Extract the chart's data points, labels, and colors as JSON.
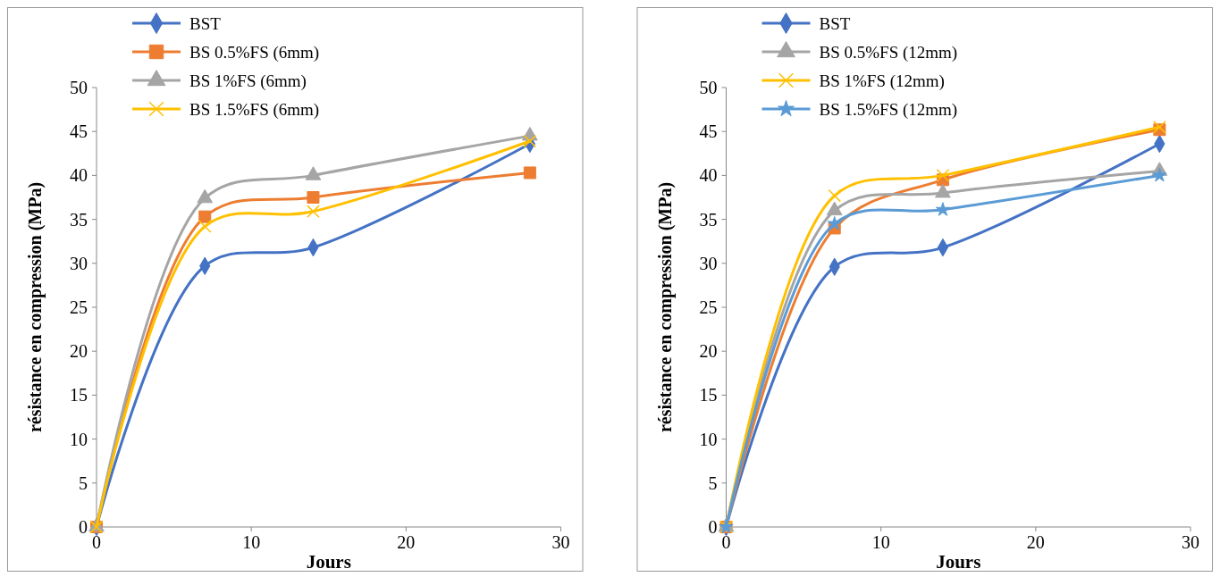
{
  "chart_data": [
    {
      "type": "line",
      "xlabel": "Jours",
      "ylabel": "résistance en compression (MPa)",
      "x": [
        0,
        7,
        14,
        28
      ],
      "xlim": [
        0,
        30
      ],
      "xticks": [
        0,
        10,
        20,
        30
      ],
      "ylim": [
        0,
        50
      ],
      "yticks": [
        0,
        5,
        10,
        15,
        20,
        25,
        30,
        35,
        40,
        45,
        50
      ],
      "grid": false,
      "legend": "top",
      "line_style": "solid",
      "series": [
        {
          "name": "BST",
          "color": "#4472c4",
          "marker": "diamond",
          "values": [
            0,
            29.7,
            31.8,
            43.6
          ]
        },
        {
          "name": "BS 0.5%FS (6mm)",
          "color": "#ed7d31",
          "marker": "square",
          "values": [
            0,
            35.3,
            37.5,
            40.3
          ]
        },
        {
          "name": "BS 1%FS (6mm)",
          "color": "#a5a5a5",
          "marker": "triangle",
          "values": [
            0,
            37.4,
            40,
            44.5
          ]
        },
        {
          "name": "BS 1.5%FS (6mm)",
          "color": "#ffc000",
          "marker": "cross",
          "values": [
            0,
            34.2,
            35.9,
            43.9
          ]
        }
      ]
    },
    {
      "type": "line",
      "xlabel": "Jours",
      "ylabel": "résistance en compression (MPa)",
      "x": [
        0,
        7,
        14,
        28
      ],
      "xlim": [
        0,
        30
      ],
      "xticks": [
        0,
        10,
        20,
        30
      ],
      "ylim": [
        0,
        50
      ],
      "yticks": [
        0,
        5,
        10,
        15,
        20,
        25,
        30,
        35,
        40,
        45,
        50
      ],
      "grid": false,
      "legend": "top",
      "line_style": "solid",
      "series": [
        {
          "name": "BST",
          "color": "#4472c4",
          "marker": "diamond",
          "values": [
            0,
            29.6,
            31.8,
            43.6
          ]
        },
        {
          "color": "#ed7d31",
          "marker": "square",
          "values": [
            0,
            34,
            39.5,
            45.2
          ]
        },
        {
          "name": "BS 0.5%FS (12mm)",
          "color": "#a5a5a5",
          "marker": "triangle",
          "values": [
            0,
            36,
            38,
            40.5
          ]
        },
        {
          "name": "BS 1%FS (12mm)",
          "color": "#ffc000",
          "marker": "cross",
          "values": [
            0,
            37.7,
            40,
            45.5
          ]
        },
        {
          "name": "BS 1.5%FS (12mm)",
          "color": "#5b9bd5",
          "marker": "star",
          "values": [
            0,
            34.5,
            36.1,
            40
          ]
        }
      ]
    }
  ]
}
